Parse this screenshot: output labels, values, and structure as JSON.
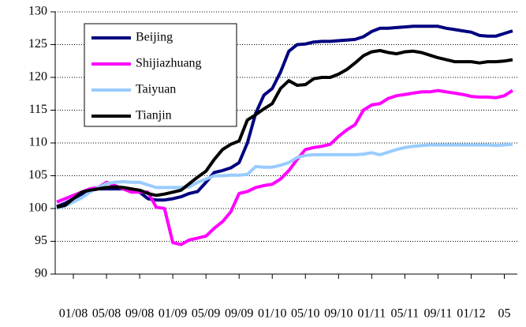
{
  "chart_data": {
    "type": "line",
    "categories": [
      null,
      null,
      "01/08",
      null,
      null,
      null,
      "05/08",
      null,
      null,
      null,
      "09/08",
      null,
      null,
      null,
      "01/09",
      null,
      null,
      null,
      "05/09",
      null,
      null,
      null,
      "09/09",
      null,
      null,
      null,
      "01/10",
      null,
      null,
      null,
      "05/10",
      null,
      null,
      null,
      "09/10",
      null,
      null,
      null,
      "01/11",
      null,
      null,
      null,
      "05/11",
      null,
      null,
      null,
      "09/11",
      null,
      null,
      null,
      "01/12",
      null,
      null,
      null,
      "05",
      null
    ],
    "series": [
      {
        "name": "Beijing",
        "color": "#000080",
        "values": [
          100.3,
          100.8,
          101.5,
          102.2,
          102.7,
          103,
          103,
          103,
          103,
          102.8,
          102.5,
          101.5,
          101.3,
          101.3,
          101.5,
          101.8,
          102.3,
          102.6,
          104,
          105.5,
          105.8,
          106.2,
          107,
          110,
          114.5,
          117.3,
          118.3,
          120.8,
          124,
          125,
          125.1,
          125.4,
          125.5,
          125.5,
          125.6,
          125.7,
          125.8,
          126.2,
          127,
          127.5,
          127.5,
          127.6,
          127.7,
          127.8,
          127.8,
          127.8,
          127.8,
          127.5,
          127.3,
          127.1,
          126.9,
          126.4,
          126.3,
          126.3,
          126.7,
          127.1
        ]
      },
      {
        "name": "Shijiazhuang",
        "color": "#ff00ff",
        "values": [
          101,
          101.5,
          102,
          102.5,
          103,
          103.2,
          104,
          103.5,
          103,
          102.5,
          102.5,
          102.5,
          100.2,
          100,
          94.8,
          94.5,
          95.2,
          95.5,
          95.8,
          97,
          98,
          99.5,
          102.3,
          102.6,
          103.2,
          103.5,
          103.7,
          104.5,
          105.8,
          107.5,
          109,
          109.3,
          109.5,
          109.8,
          111,
          112,
          112.8,
          115,
          115.8,
          116,
          116.8,
          117.2,
          117.4,
          117.6,
          117.8,
          117.8,
          118,
          117.8,
          117.6,
          117.4,
          117.1,
          117,
          117,
          116.9,
          117.2,
          118
        ]
      },
      {
        "name": "Taiyuan",
        "color": "#99ccff",
        "values": [
          100,
          100.4,
          101,
          101.6,
          102.5,
          103.2,
          103.8,
          104,
          104.1,
          104,
          104,
          103.6,
          103.2,
          103.2,
          103.2,
          103.2,
          103.3,
          104,
          104.5,
          105,
          105,
          105.1,
          105.1,
          105.2,
          106.4,
          106.3,
          106.3,
          106.6,
          107,
          107.8,
          108.1,
          108.2,
          108.2,
          108.2,
          108.2,
          108.2,
          108.2,
          108.3,
          108.5,
          108.2,
          108.6,
          109,
          109.3,
          109.5,
          109.6,
          109.7,
          109.7,
          109.7,
          109.7,
          109.7,
          109.7,
          109.7,
          109.7,
          109.6,
          109.7,
          109.8
        ]
      },
      {
        "name": "Tianjin",
        "color": "#000000",
        "values": [
          100.2,
          100.5,
          101.5,
          102.5,
          102.8,
          103,
          103.2,
          103.3,
          103.2,
          103,
          102.8,
          102.3,
          102,
          102.2,
          102.5,
          102.8,
          103.8,
          104.8,
          105.7,
          107.5,
          109,
          109.8,
          110.3,
          113.5,
          114.3,
          115.2,
          116,
          118.3,
          119.5,
          118.8,
          118.9,
          119.8,
          120,
          120,
          120.5,
          121.2,
          122.2,
          123.3,
          123.9,
          124.1,
          123.8,
          123.6,
          123.9,
          124,
          123.8,
          123.4,
          123,
          122.7,
          122.4,
          122.4,
          122.4,
          122.2,
          122.4,
          122.4,
          122.5,
          122.7
        ]
      }
    ],
    "ylim": [
      90,
      130
    ],
    "yticks": [
      90,
      95,
      100,
      105,
      110,
      115,
      120,
      125,
      130
    ],
    "grid": true,
    "legend": "upper-left"
  }
}
